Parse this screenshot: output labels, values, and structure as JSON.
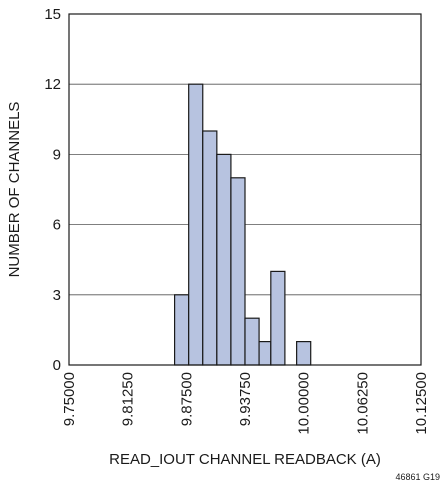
{
  "chart_data": {
    "type": "bar",
    "subtype": "histogram",
    "xlabel": "READ_IOUT CHANNEL READBACK (A)",
    "ylabel": "NUMBER OF CHANNELS",
    "xlim": [
      9.75,
      10.125
    ],
    "ylim": [
      0,
      15
    ],
    "x_ticks": [
      9.75,
      9.8125,
      9.875,
      9.9375,
      10.0,
      10.0625,
      10.125
    ],
    "x_tick_labels": [
      "9.75000",
      "9.81250",
      "9.87500",
      "9.93750",
      "10.00000",
      "10.06250",
      "10.12500"
    ],
    "y_ticks": [
      0,
      3,
      6,
      9,
      12,
      15
    ],
    "y_tick_labels": [
      "0",
      "3",
      "6",
      "9",
      "12",
      "15"
    ],
    "grid": "horizontal",
    "bar_color": "#b7c3e0",
    "bar_edge_color": "#1a1a1a",
    "bins": [
      {
        "x0": 9.8625,
        "x1": 9.8775,
        "count": 3
      },
      {
        "x0": 9.8775,
        "x1": 9.8925,
        "count": 12
      },
      {
        "x0": 9.8925,
        "x1": 9.9075,
        "count": 10
      },
      {
        "x0": 9.9075,
        "x1": 9.9225,
        "count": 9
      },
      {
        "x0": 9.9225,
        "x1": 9.9375,
        "count": 8
      },
      {
        "x0": 9.9375,
        "x1": 9.9525,
        "count": 2
      },
      {
        "x0": 9.9525,
        "x1": 9.965,
        "count": 1
      },
      {
        "x0": 9.965,
        "x1": 9.98,
        "count": 4
      },
      {
        "x0": 9.9925,
        "x1": 10.0075,
        "count": 1
      }
    ],
    "figure_id": "46861 G19"
  }
}
